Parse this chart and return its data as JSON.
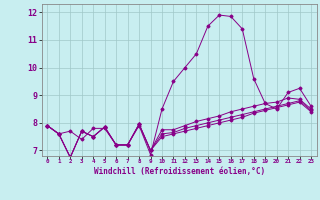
{
  "xlabel": "Windchill (Refroidissement éolien,°C)",
  "background_color": "#c8eef0",
  "grid_color": "#a0c8c8",
  "line_color": "#880088",
  "x_values": [
    0,
    1,
    2,
    3,
    4,
    5,
    6,
    7,
    8,
    9,
    10,
    11,
    12,
    13,
    14,
    15,
    16,
    17,
    18,
    19,
    20,
    21,
    22,
    23
  ],
  "ylim": [
    6.8,
    12.3
  ],
  "yticks": [
    7,
    8,
    9,
    10,
    11,
    12
  ],
  "series1": [
    7.9,
    7.6,
    7.7,
    7.4,
    7.8,
    7.8,
    7.2,
    7.2,
    7.9,
    6.85,
    8.5,
    9.5,
    10.0,
    10.5,
    11.5,
    11.9,
    11.85,
    11.4,
    9.6,
    8.7,
    8.5,
    9.1,
    9.25,
    8.6
  ],
  "series2": [
    7.9,
    7.6,
    6.75,
    7.7,
    7.5,
    7.85,
    7.2,
    7.2,
    7.95,
    7.0,
    7.75,
    7.75,
    7.9,
    8.05,
    8.15,
    8.25,
    8.4,
    8.5,
    8.6,
    8.7,
    8.75,
    8.9,
    8.85,
    8.5
  ],
  "series3": [
    7.9,
    7.6,
    6.75,
    7.7,
    7.5,
    7.85,
    7.2,
    7.2,
    7.95,
    7.0,
    7.6,
    7.65,
    7.8,
    7.9,
    8.0,
    8.1,
    8.2,
    8.3,
    8.4,
    8.5,
    8.6,
    8.7,
    8.8,
    8.45
  ],
  "series4": [
    7.9,
    7.6,
    6.75,
    7.7,
    7.5,
    7.85,
    7.2,
    7.2,
    7.95,
    7.0,
    7.5,
    7.6,
    7.7,
    7.8,
    7.9,
    8.0,
    8.1,
    8.2,
    8.35,
    8.45,
    8.55,
    8.65,
    8.75,
    8.4
  ]
}
